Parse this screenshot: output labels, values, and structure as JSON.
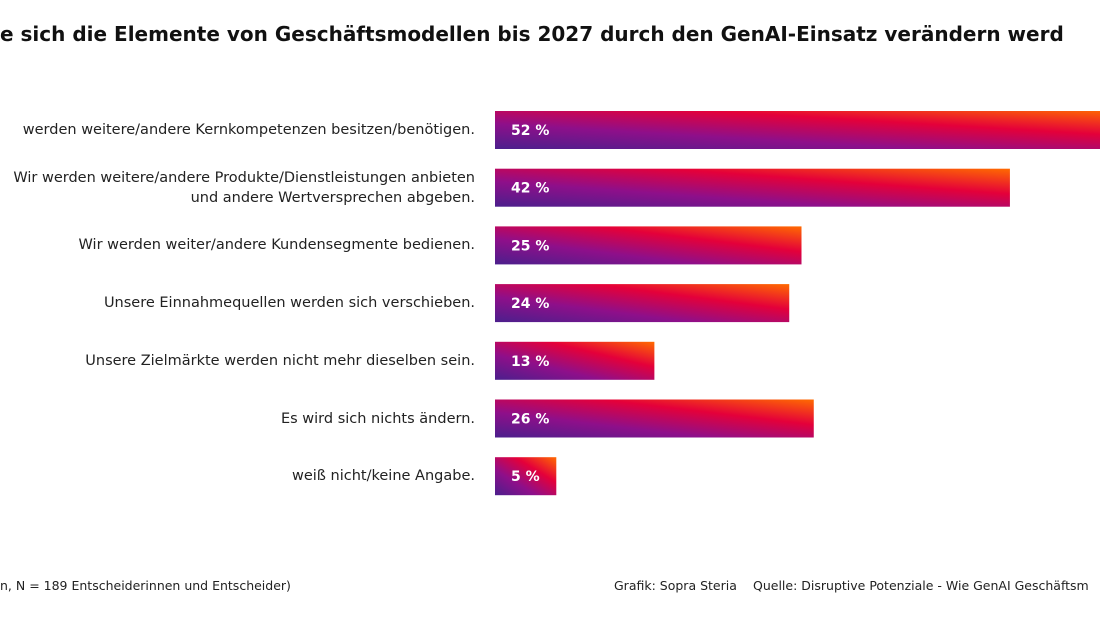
{
  "chart_data": {
    "type": "bar",
    "title": "e sich die Elemente von Geschäftsmodellen bis 2027 durch den GenAI-Einsatz verändern werd",
    "categories": [
      "werden weitere/andere Kernkompetenzen besitzen/benötigen.",
      "Wir werden weitere/andere Produkte/Dienstleistungen anbieten\nund andere Wertversprechen abgeben.",
      "Wir werden weiter/andere Kundensegmente bedienen.",
      "Unsere Einnahmequellen werden sich verschieben.",
      "Unsere Zielmärkte werden nicht mehr dieselben sein.",
      "Es wird sich nichts ändern.",
      "weiß nicht/keine Angabe."
    ],
    "values": [
      52,
      42,
      25,
      24,
      13,
      26,
      5
    ],
    "value_labels": [
      "52 %",
      "42 %",
      "25 %",
      "24 %",
      "13 %",
      "26 %",
      "5 %"
    ],
    "colors": [
      "#4b1f8c",
      "#8e0f8a",
      "#e4003a",
      "#ff6a00"
    ],
    "footer": {
      "note": "n, N = 189 Entscheiderinnen und Entscheider)",
      "credit": "Grafik: Sopra Steria",
      "source": "Quelle: Disruptive Potenziale - Wie GenAI Geschäftsm"
    }
  }
}
